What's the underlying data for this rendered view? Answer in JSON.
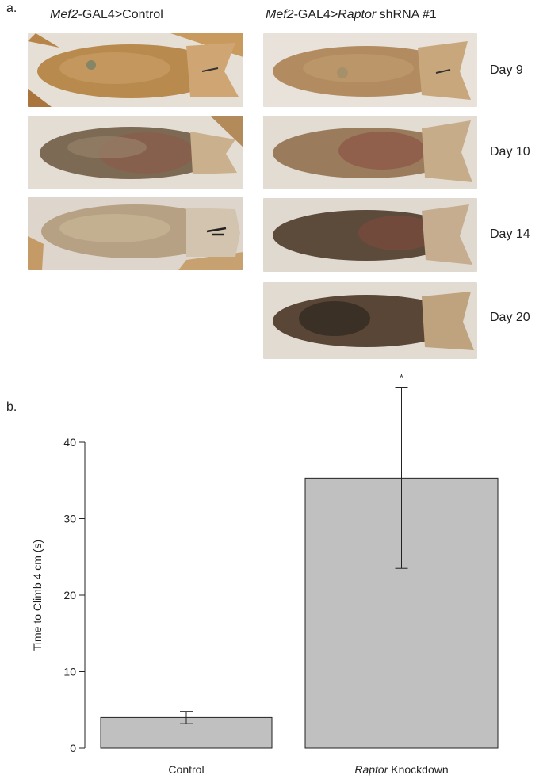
{
  "panel_a": {
    "letter": "a.",
    "col_left_title": {
      "italic": "Mef2",
      "plain": "-GAL4>Control"
    },
    "col_right_title": {
      "italic1": "Mef2",
      "plain1": "-GAL4>",
      "italic2": "Raptor",
      "plain2": " shRNA #1"
    },
    "day_labels": [
      "Day 9",
      "Day 10",
      "Day 14",
      "Day 20"
    ]
  },
  "panel_b": {
    "letter": "b."
  },
  "chart_data": {
    "type": "bar",
    "categories": [
      "Control",
      "Raptor Knockdown"
    ],
    "category_italic_prefix": [
      "",
      "Raptor"
    ],
    "category_suffix": [
      "Control",
      " Knockdown"
    ],
    "values": [
      4.0,
      35.3
    ],
    "error_low": [
      3.2,
      23.5
    ],
    "error_high": [
      4.8,
      47.2
    ],
    "significance": [
      "",
      "*"
    ],
    "ylabel": "Time to Climb 4 cm (s)",
    "xlabel": "",
    "ylim": [
      0,
      40
    ],
    "yticks": [
      0,
      10,
      20,
      30,
      40
    ],
    "bar_color": "#c0c0c0",
    "grid": false
  }
}
